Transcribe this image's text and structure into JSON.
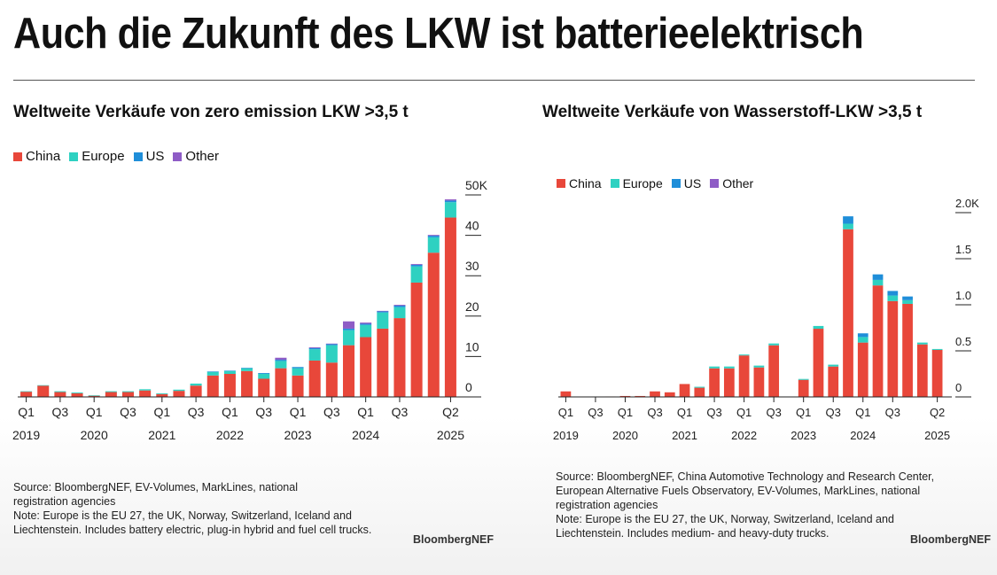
{
  "title": "Auch die Zukunft des LKW ist batterieelektrisch",
  "colors": {
    "China": "#e8473a",
    "Europe": "#2ed1c1",
    "US": "#1f8ed9",
    "Other": "#8e5cc6"
  },
  "legend": [
    "China",
    "Europe",
    "US",
    "Other"
  ],
  "left": {
    "title": "Weltweite Verkäufe von zero emission LKW >3,5 t",
    "source_lines": [
      "Source: BloombergNEF, EV-Volumes, MarkLines, national",
      "registration agencies",
      "Note: Europe is the EU 27, the UK, Norway, Switzerland, Iceland and",
      "Liechtenstein. Includes battery electric, plug-in hybrid and fuel cell trucks."
    ],
    "brand": "BloombergNEF"
  },
  "right": {
    "title": "Weltweite Verkäufe von Wasserstoff-LKW >3,5 t",
    "source_lines": [
      "Source: BloombergNEF, China Automotive Technology and Research Center,",
      "European Alternative Fuels Observatory, EV-Volumes, MarkLines, national",
      "registration agencies",
      "Note: Europe is the EU 27, the UK, Norway, Switzerland, Iceland and",
      "Liechtenstein. Includes medium- and heavy-duty trucks."
    ],
    "brand": "BloombergNEF"
  },
  "chart_data": [
    {
      "type": "bar",
      "stacked": true,
      "title": "Weltweite Verkäufe von zero emission LKW >3,5 t",
      "ylim": [
        0,
        50000
      ],
      "yticks": [
        "0",
        "10",
        "20",
        "30",
        "40",
        "50K"
      ],
      "ytick_values": [
        0,
        10000,
        20000,
        30000,
        40000,
        50000
      ],
      "categories": [
        "Q1 2019",
        "Q2 2019",
        "Q3 2019",
        "Q4 2019",
        "Q1 2020",
        "Q2 2020",
        "Q3 2020",
        "Q4 2020",
        "Q1 2021",
        "Q2 2021",
        "Q3 2021",
        "Q4 2021",
        "Q1 2022",
        "Q2 2022",
        "Q3 2022",
        "Q4 2022",
        "Q1 2023",
        "Q2 2023",
        "Q3 2023",
        "Q4 2023",
        "Q1 2024",
        "Q2 2024",
        "Q3 2024",
        "Q4 2024",
        "Q1 2025",
        "Q2 2025"
      ],
      "xtick_labels": [
        "Q1",
        "Q3",
        "Q1",
        "Q3",
        "Q1",
        "Q3",
        "Q1",
        "Q3",
        "Q1",
        "Q3",
        "Q1",
        "Q3",
        "Q2"
      ],
      "xtick_index": [
        0,
        2,
        4,
        6,
        8,
        10,
        12,
        14,
        16,
        18,
        20,
        22,
        25
      ],
      "year_labels": [
        "2019",
        "2020",
        "2021",
        "2022",
        "2023",
        "2024",
        "2025"
      ],
      "year_index": [
        0,
        4,
        8,
        12,
        16,
        20,
        25
      ],
      "series": [
        {
          "name": "China",
          "values": [
            1300,
            2800,
            1200,
            900,
            300,
            1200,
            1200,
            1600,
            700,
            1500,
            2800,
            5300,
            5700,
            6400,
            4500,
            7100,
            5300,
            9000,
            8500,
            12800,
            14800,
            16900,
            19500,
            28300,
            35700,
            44400
          ]
        },
        {
          "name": "Europe",
          "values": [
            100,
            100,
            200,
            200,
            100,
            200,
            200,
            300,
            200,
            300,
            500,
            900,
            700,
            700,
            1200,
            1800,
            1800,
            2800,
            4300,
            3700,
            3000,
            4000,
            2700,
            4000,
            3800,
            3800
          ]
        },
        {
          "name": "US",
          "values": [
            0,
            0,
            0,
            0,
            0,
            0,
            0,
            0,
            0,
            0,
            0,
            100,
            100,
            100,
            200,
            300,
            300,
            300,
            300,
            400,
            300,
            300,
            400,
            400,
            400,
            400
          ]
        },
        {
          "name": "Other",
          "values": [
            0,
            0,
            0,
            0,
            0,
            0,
            0,
            0,
            0,
            0,
            0,
            0,
            0,
            0,
            0,
            500,
            0,
            200,
            100,
            1800,
            300,
            100,
            200,
            200,
            200,
            300
          ]
        }
      ]
    },
    {
      "type": "bar",
      "stacked": true,
      "title": "Weltweite Verkäufe von Wasserstoff-LKW >3,5 t",
      "ylim": [
        0,
        2000
      ],
      "yticks": [
        "0",
        "0.5",
        "1.0",
        "1.5",
        "2.0K"
      ],
      "ytick_values": [
        0,
        500,
        1000,
        1500,
        2000
      ],
      "categories": [
        "Q1 2019",
        "Q2 2019",
        "Q3 2019",
        "Q4 2019",
        "Q1 2020",
        "Q2 2020",
        "Q3 2020",
        "Q4 2020",
        "Q1 2021",
        "Q2 2021",
        "Q3 2021",
        "Q4 2021",
        "Q1 2022",
        "Q2 2022",
        "Q3 2022",
        "Q4 2022",
        "Q1 2023",
        "Q2 2023",
        "Q3 2023",
        "Q4 2023",
        "Q1 2024",
        "Q2 2024",
        "Q3 2024",
        "Q4 2024",
        "Q1 2025",
        "Q2 2025"
      ],
      "xtick_labels": [
        "Q1",
        "Q3",
        "Q1",
        "Q3",
        "Q1",
        "Q3",
        "Q1",
        "Q3",
        "Q1",
        "Q3",
        "Q1",
        "Q3",
        "Q2"
      ],
      "xtick_index": [
        0,
        2,
        4,
        6,
        8,
        10,
        12,
        14,
        16,
        18,
        20,
        22,
        25
      ],
      "year_labels": [
        "2019",
        "2020",
        "2021",
        "2022",
        "2023",
        "2024",
        "2025"
      ],
      "year_index": [
        0,
        4,
        8,
        12,
        16,
        20,
        25
      ],
      "series": [
        {
          "name": "China",
          "values": [
            60,
            0,
            0,
            5,
            10,
            10,
            60,
            50,
            140,
            100,
            310,
            310,
            450,
            320,
            560,
            0,
            185,
            740,
            330,
            1820,
            590,
            1210,
            1040,
            1010,
            570,
            510
          ]
        },
        {
          "name": "Europe",
          "values": [
            0,
            0,
            0,
            0,
            0,
            0,
            0,
            0,
            0,
            10,
            20,
            20,
            10,
            20,
            20,
            0,
            10,
            30,
            20,
            60,
            60,
            60,
            60,
            40,
            20,
            10
          ]
        },
        {
          "name": "US",
          "values": [
            0,
            0,
            0,
            0,
            0,
            0,
            0,
            0,
            0,
            0,
            0,
            0,
            0,
            0,
            0,
            0,
            0,
            0,
            0,
            80,
            40,
            60,
            50,
            40,
            0,
            0
          ]
        },
        {
          "name": "Other",
          "values": [
            0,
            0,
            0,
            0,
            0,
            0,
            0,
            0,
            0,
            0,
            0,
            0,
            0,
            0,
            0,
            0,
            0,
            0,
            0,
            0,
            0,
            0,
            0,
            0,
            0,
            0
          ]
        }
      ]
    }
  ]
}
